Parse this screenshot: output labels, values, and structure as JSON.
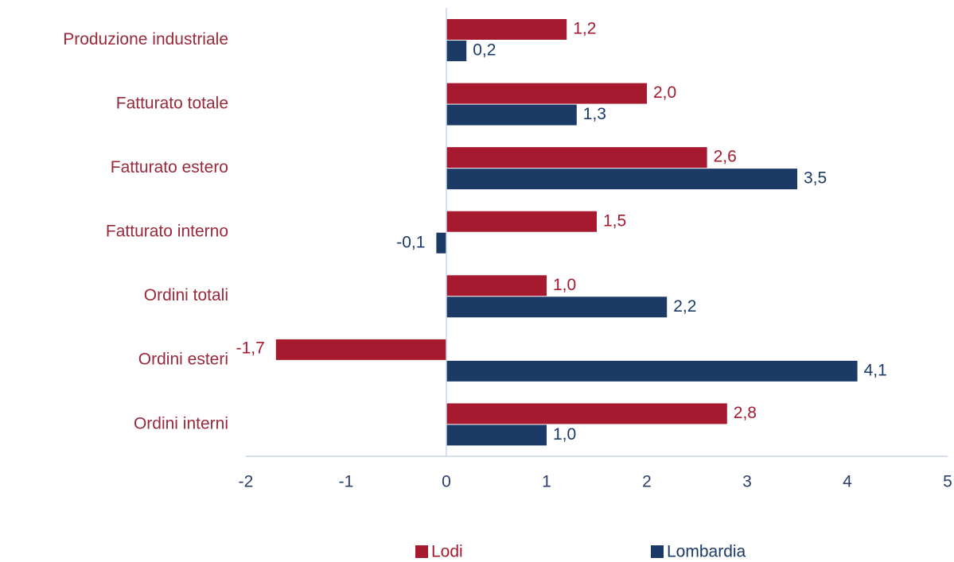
{
  "chart_data": {
    "type": "hbar",
    "categories": [
      "Produzione industriale",
      "Fatturato totale",
      "Fatturato estero",
      "Fatturato interno",
      "Ordini totali",
      "Ordini esteri",
      "Ordini interni"
    ],
    "series": [
      {
        "name": "Lodi",
        "color": "#a6192e",
        "values": [
          1.2,
          2.0,
          2.6,
          1.5,
          1.0,
          -1.7,
          2.8
        ],
        "value_labels": [
          "1,2",
          "2,0",
          "2,6",
          "1,5",
          "1,0",
          "-1,7",
          "2,8"
        ]
      },
      {
        "name": "Lombardia",
        "color": "#1b3a66",
        "values": [
          0.2,
          1.3,
          3.5,
          -0.1,
          2.2,
          4.1,
          1.0
        ],
        "value_labels": [
          "0,2",
          "1,3",
          "3,5",
          "-0,1",
          "2,2",
          "4,1",
          "1,0"
        ]
      }
    ],
    "xlim": [
      -2,
      5
    ],
    "xticks": [
      -2,
      -1,
      0,
      1,
      2,
      3,
      4,
      5
    ],
    "legend": "bottom"
  }
}
